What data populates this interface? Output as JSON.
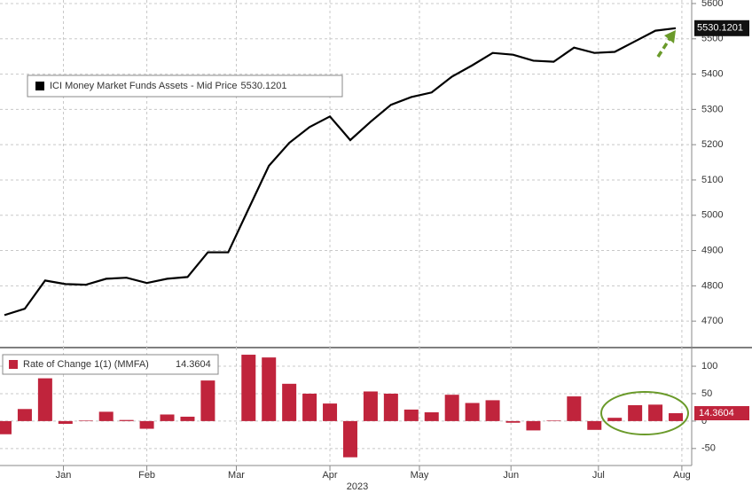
{
  "chart_data": [
    {
      "type": "line",
      "categories": [
        null,
        null,
        null,
        null,
        null,
        null,
        null,
        null,
        null,
        null,
        null,
        null,
        null,
        null,
        null,
        null,
        null,
        null,
        null,
        null,
        null,
        null,
        null,
        null,
        null,
        null,
        null,
        null,
        null,
        null,
        null,
        null,
        null,
        null
      ],
      "series": [
        {
          "name": "ICI Money Market Funds Assets - Mid Price",
          "color": "#000000",
          "values": [
            4717,
            4735,
            4815,
            4805,
            4803,
            4820,
            4823,
            4808,
            4820,
            4825,
            4895,
            4895,
            5018,
            5140,
            5205,
            5250,
            5280,
            5213,
            5265,
            5313,
            5335,
            5348,
            5393,
            5425,
            5460,
            5455,
            5438,
            5435,
            5475,
            5460,
            5463,
            5493,
            5523,
            5530.1201
          ]
        }
      ],
      "ylim": [
        4625,
        5610
      ],
      "yticks": [
        4700,
        4800,
        4900,
        5000,
        5100,
        5200,
        5300,
        5400,
        5500,
        5600
      ],
      "grid": true
    },
    {
      "type": "bar",
      "categories": [
        null,
        null,
        null,
        null,
        null,
        null,
        null,
        null,
        null,
        null,
        null,
        null,
        null,
        null,
        null,
        null,
        null,
        null,
        null,
        null,
        null,
        null,
        null,
        null,
        null,
        null,
        null,
        null,
        null,
        null,
        null,
        null,
        null,
        null
      ],
      "series": [
        {
          "name": "Rate of Change 1(1) (MMFA)",
          "color": "#c0243c",
          "values": [
            -24,
            22,
            78,
            -5,
            1,
            17,
            2,
            -14,
            12,
            8,
            74,
            0,
            121,
            116,
            68,
            50,
            32,
            -66,
            54,
            50,
            21,
            16,
            48,
            33,
            38,
            -3,
            -17,
            1,
            45,
            -16,
            6,
            29,
            30,
            14.3604
          ]
        }
      ],
      "ylim": [
        -81,
        134
      ],
      "yticks": [
        -50,
        0,
        50,
        100
      ],
      "grid": true,
      "xticks": [
        {
          "value": 2.9,
          "label": "Jan"
        },
        {
          "value": 7.0,
          "label": "Feb"
        },
        {
          "value": 11.4,
          "label": "Mar"
        },
        {
          "value": 16.0,
          "label": "Apr"
        },
        {
          "value": 20.4,
          "label": "May"
        },
        {
          "value": 24.9,
          "label": "Jun"
        },
        {
          "value": 29.2,
          "label": "Jul"
        },
        {
          "value": 33.3,
          "label": "Aug"
        }
      ],
      "xlabel": "2023"
    }
  ]
}
